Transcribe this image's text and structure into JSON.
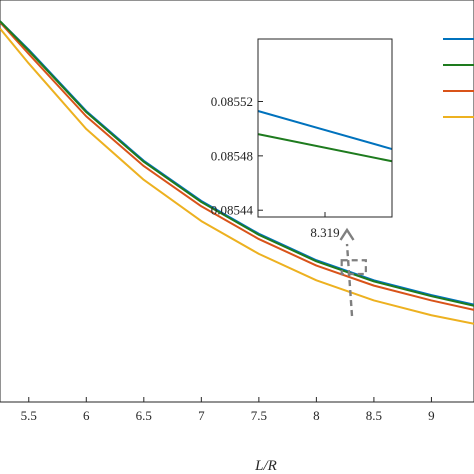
{
  "chart_data": [
    {
      "type": "line",
      "xlabel": "L/R",
      "ylabel": "",
      "title": "",
      "xlim": [
        5.25,
        9.37
      ],
      "ylim": [
        0.062,
        0.1
      ],
      "xticks": [
        5.5,
        6,
        6.5,
        7,
        7.5,
        8,
        8.5,
        9
      ],
      "xtick_labels": [
        "5.5",
        "6",
        "6.5",
        "7",
        "7.5",
        "8",
        "8.5",
        "9"
      ],
      "grid": false,
      "legend_position": "top-right",
      "legend_labels_visible": false,
      "series": [
        {
          "color": "#0072BD",
          "x": [
            5.25,
            5.5,
            6,
            6.5,
            7,
            7.5,
            8,
            8.5,
            9,
            9.37
          ],
          "y": [
            0.098,
            0.0953,
            0.0895,
            0.0848,
            0.081,
            0.0779,
            0.0754,
            0.0735,
            0.0721,
            0.0712
          ]
        },
        {
          "color": "#1E7B1E",
          "x": [
            5.25,
            5.5,
            6,
            6.5,
            7,
            7.5,
            8,
            8.5,
            9,
            9.37
          ],
          "y": [
            0.098,
            0.0952,
            0.0894,
            0.0847,
            0.0809,
            0.0778,
            0.0753,
            0.0734,
            0.072,
            0.0711
          ]
        },
        {
          "color": "#D95319",
          "x": [
            5.25,
            5.5,
            6,
            6.5,
            7,
            7.5,
            8,
            8.5,
            9,
            9.37
          ],
          "y": [
            0.0979,
            0.0949,
            0.089,
            0.0843,
            0.0805,
            0.0774,
            0.0749,
            0.073,
            0.0716,
            0.0707
          ]
        },
        {
          "color": "#EDB120",
          "x": [
            5.25,
            5.5,
            6,
            6.5,
            7,
            7.5,
            8,
            8.5,
            9,
            9.37
          ],
          "y": [
            0.0973,
            0.094,
            0.0878,
            0.083,
            0.0791,
            0.076,
            0.0735,
            0.0716,
            0.0702,
            0.0694
          ]
        }
      ],
      "zoom_box": {
        "x": [
          8.22,
          8.43
        ],
        "y": [
          0.0741,
          0.0754
        ]
      }
    },
    {
      "type": "line",
      "title": "",
      "xlabel": "",
      "ylabel": "",
      "xlim": [
        8.2943,
        8.3437
      ],
      "ylim": [
        0.085435,
        0.085566
      ],
      "xticks": [
        8.319
      ],
      "xtick_labels": [
        "8.319"
      ],
      "yticks": [
        0.08544,
        0.08548,
        0.08552
      ],
      "ytick_labels": [
        "0.08544",
        "0.08548",
        "0.08552"
      ],
      "series": [
        {
          "color": "#0072BD",
          "x": [
            8.2943,
            8.3437
          ],
          "y": [
            0.085513,
            0.085485
          ]
        },
        {
          "color": "#1E7B1E",
          "x": [
            8.2943,
            8.3437
          ],
          "y": [
            0.085496,
            0.085476
          ]
        }
      ]
    }
  ]
}
